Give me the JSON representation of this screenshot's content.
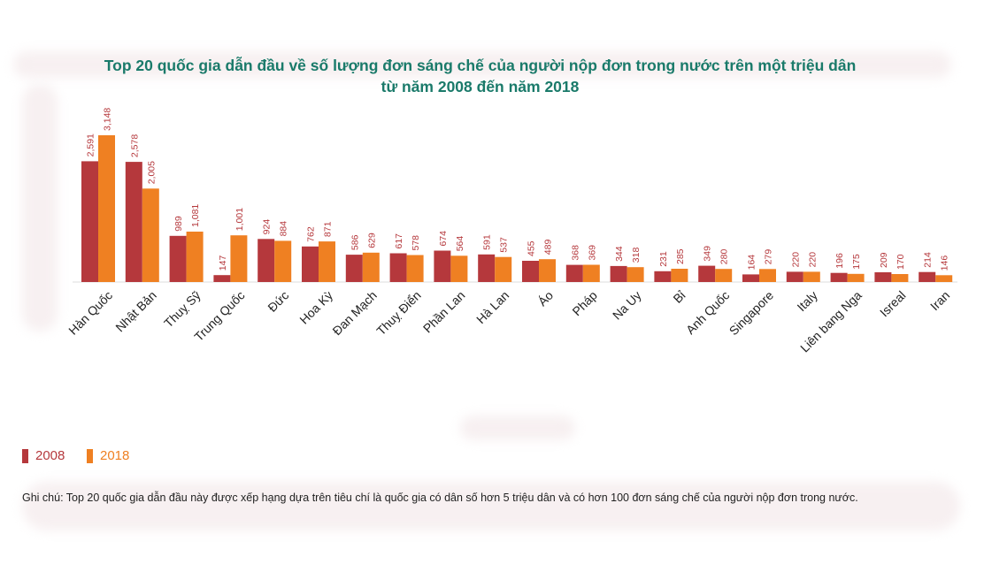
{
  "colors": {
    "title": "#1a7a6a",
    "series_2008": "#b5383c",
    "series_2018": "#ef8022"
  },
  "note": "Ghi chú: Top 20 quốc gia dẫn đầu này được xếp hạng dựa trên tiêu chí là quốc gia có dân số hơn 5 triệu dân và có hơn 100 đơn sáng chế của người nộp đơn trong nước.",
  "chart_data": {
    "type": "bar",
    "title_line1": "Top 20 quốc gia dẫn đầu về số lượng đơn sáng chế của người nộp đơn trong nước trên một triệu dân",
    "title_line2": "từ năm 2008 đến năm 2018",
    "xlabel": "",
    "ylabel": "",
    "grid": false,
    "legend_position": "bottom-left",
    "categories": [
      "Hàn Quốc",
      "Nhật Bản",
      "Thuỵ Sỹ",
      "Trung Quốc",
      "Đức",
      "Hoa Kỳ",
      "Đan Mạch",
      "Thuỵ Điển",
      "Phần Lan",
      "Hà Lan",
      "Áo",
      "Pháp",
      "Na Uy",
      "Bỉ",
      "Anh Quốc",
      "Singapore",
      "Italy",
      "Liên bang Nga",
      "Isreal",
      "Iran"
    ],
    "series": [
      {
        "name": "2008",
        "values": [
          2591,
          2578,
          989,
          147,
          924,
          762,
          586,
          617,
          674,
          591,
          455,
          368,
          344,
          231,
          349,
          164,
          220,
          196,
          209,
          214
        ],
        "labels": [
          "2,591",
          "2,578",
          "989",
          "147",
          "924",
          "762",
          "586",
          "617",
          "674",
          "591",
          "455",
          "368",
          "344",
          "231",
          "349",
          "164",
          "220",
          "196",
          "209",
          "214"
        ]
      },
      {
        "name": "2018",
        "values": [
          3148,
          2005,
          1081,
          1001,
          884,
          871,
          629,
          578,
          564,
          537,
          489,
          369,
          318,
          285,
          280,
          279,
          220,
          175,
          170,
          146
        ],
        "labels": [
          "3,148",
          "2,005",
          "1,081",
          "1,001",
          "884",
          "871",
          "629",
          "578",
          "564",
          "537",
          "489",
          "369",
          "318",
          "285",
          "280",
          "279",
          "220",
          "175",
          "170",
          "146"
        ]
      }
    ]
  }
}
